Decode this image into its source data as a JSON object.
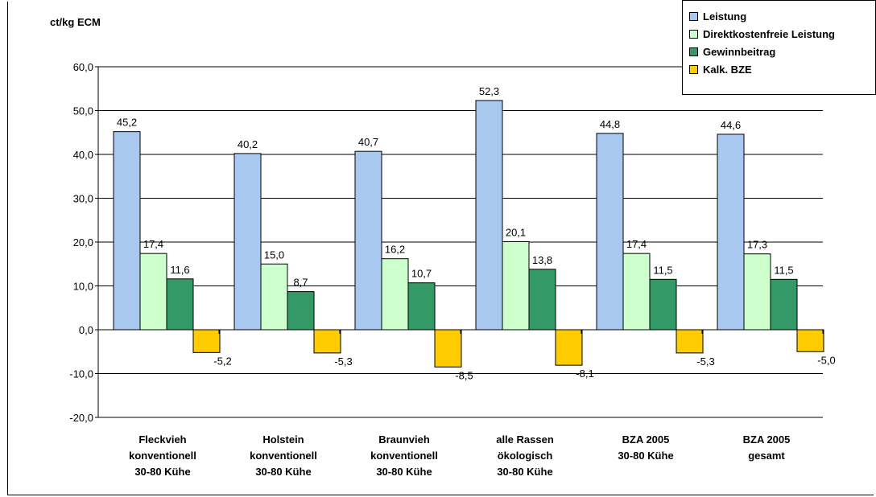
{
  "chart_data": {
    "type": "bar",
    "ylabel": "ct/kg ECM",
    "ylim": [
      -20,
      60
    ],
    "ytick_step": 10,
    "ytick_labels": [
      "60,0",
      "50,0",
      "40,0",
      "30,0",
      "20,0",
      "10,0",
      "0,0",
      "-10,0",
      "-20,0"
    ],
    "grid": true,
    "legend_position": "top-right",
    "categories": [
      "Fleckvieh\nkonventionell\n30-80 Kühe",
      "Holstein\nkonventionell\n30-80 Kühe",
      "Braunvieh\nkonventionell\n30-80 Kühe",
      "alle Rassen\nökologisch\n30-80 Kühe",
      "BZA 2005\n30-80 Kühe",
      "BZA 2005\ngesamt"
    ],
    "series": [
      {
        "name": "Leistung",
        "color": "#a8c8f0",
        "values": [
          45.2,
          40.2,
          40.7,
          52.3,
          44.8,
          44.6
        ],
        "labels": [
          "45,2",
          "40,2",
          "40,7",
          "52,3",
          "44,8",
          "44,6"
        ]
      },
      {
        "name": "Direktkostenfreie Leistung",
        "color": "#ccffcc",
        "values": [
          17.4,
          15.0,
          16.2,
          20.1,
          17.4,
          17.3
        ],
        "labels": [
          "17,4",
          "15,0",
          "16,2",
          "20,1",
          "17,4",
          "17,3"
        ]
      },
      {
        "name": "Gewinnbeitrag",
        "color": "#339966",
        "values": [
          11.6,
          8.7,
          10.7,
          13.8,
          11.5,
          11.5
        ],
        "labels": [
          "11,6",
          "8,7",
          "10,7",
          "13,8",
          "11,5",
          "11,5"
        ]
      },
      {
        "name": "Kalk. BZE",
        "color": "#ffcc00",
        "values": [
          -5.2,
          -5.3,
          -8.5,
          -8.1,
          -5.3,
          -5.0
        ],
        "labels": [
          "-5,2",
          "-5,3",
          "-8,5",
          "-8,1",
          "-5,3",
          "-5,0"
        ]
      }
    ]
  }
}
